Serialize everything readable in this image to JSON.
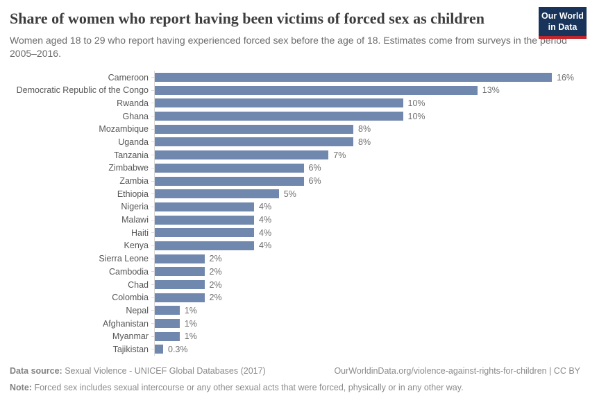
{
  "header": {
    "title": "Share of women who report having been victims of forced sex as children",
    "subtitle": "Women aged 18 to 29 who report having experienced forced sex before the age of 18. Estimates come from surveys in the period 2005–2016.",
    "logo_line1": "Our World",
    "logo_line2": "in Data",
    "logo_bg": "#18345a",
    "logo_accent": "#c0272d"
  },
  "chart_data": {
    "type": "bar",
    "orientation": "horizontal",
    "title": "Share of women who report having been victims of forced sex as children",
    "subtitle": "Women aged 18 to 29 who report having experienced forced sex before the age of 18. Estimates come from surveys in the period 2005–2016.",
    "categories": [
      "Cameroon",
      "Democratic Republic of the Congo",
      "Rwanda",
      "Ghana",
      "Mozambique",
      "Uganda",
      "Tanzania",
      "Zimbabwe",
      "Zambia",
      "Ethiopia",
      "Nigeria",
      "Malawi",
      "Haiti",
      "Kenya",
      "Sierra Leone",
      "Cambodia",
      "Chad",
      "Colombia",
      "Nepal",
      "Afghanistan",
      "Myanmar",
      "Tajikistan"
    ],
    "values": [
      16,
      13,
      10,
      10,
      8,
      8,
      7,
      6,
      6,
      5,
      4,
      4,
      4,
      4,
      2,
      2,
      2,
      2,
      1,
      1,
      1,
      0.3
    ],
    "value_labels": [
      "16%",
      "13%",
      "10%",
      "10%",
      "8%",
      "8%",
      "7%",
      "6%",
      "6%",
      "5%",
      "4%",
      "4%",
      "4%",
      "4%",
      "2%",
      "2%",
      "2%",
      "2%",
      "1%",
      "1%",
      "1%",
      "0.3%"
    ],
    "unit": "%",
    "xlim": [
      0,
      16
    ],
    "bar_color": "#7088ae",
    "axis_color": "#d9d9d9",
    "grid": false,
    "legend": "none"
  },
  "footer": {
    "source_label": "Data source:",
    "source_text": "Sexual Violence - UNICEF Global Databases (2017)",
    "link_text": "OurWorldinData.org/violence-against-rights-for-children | CC BY",
    "note_label": "Note:",
    "note_text": "Forced sex includes sexual intercourse or any other sexual acts that were forced, physically or in any other way."
  }
}
